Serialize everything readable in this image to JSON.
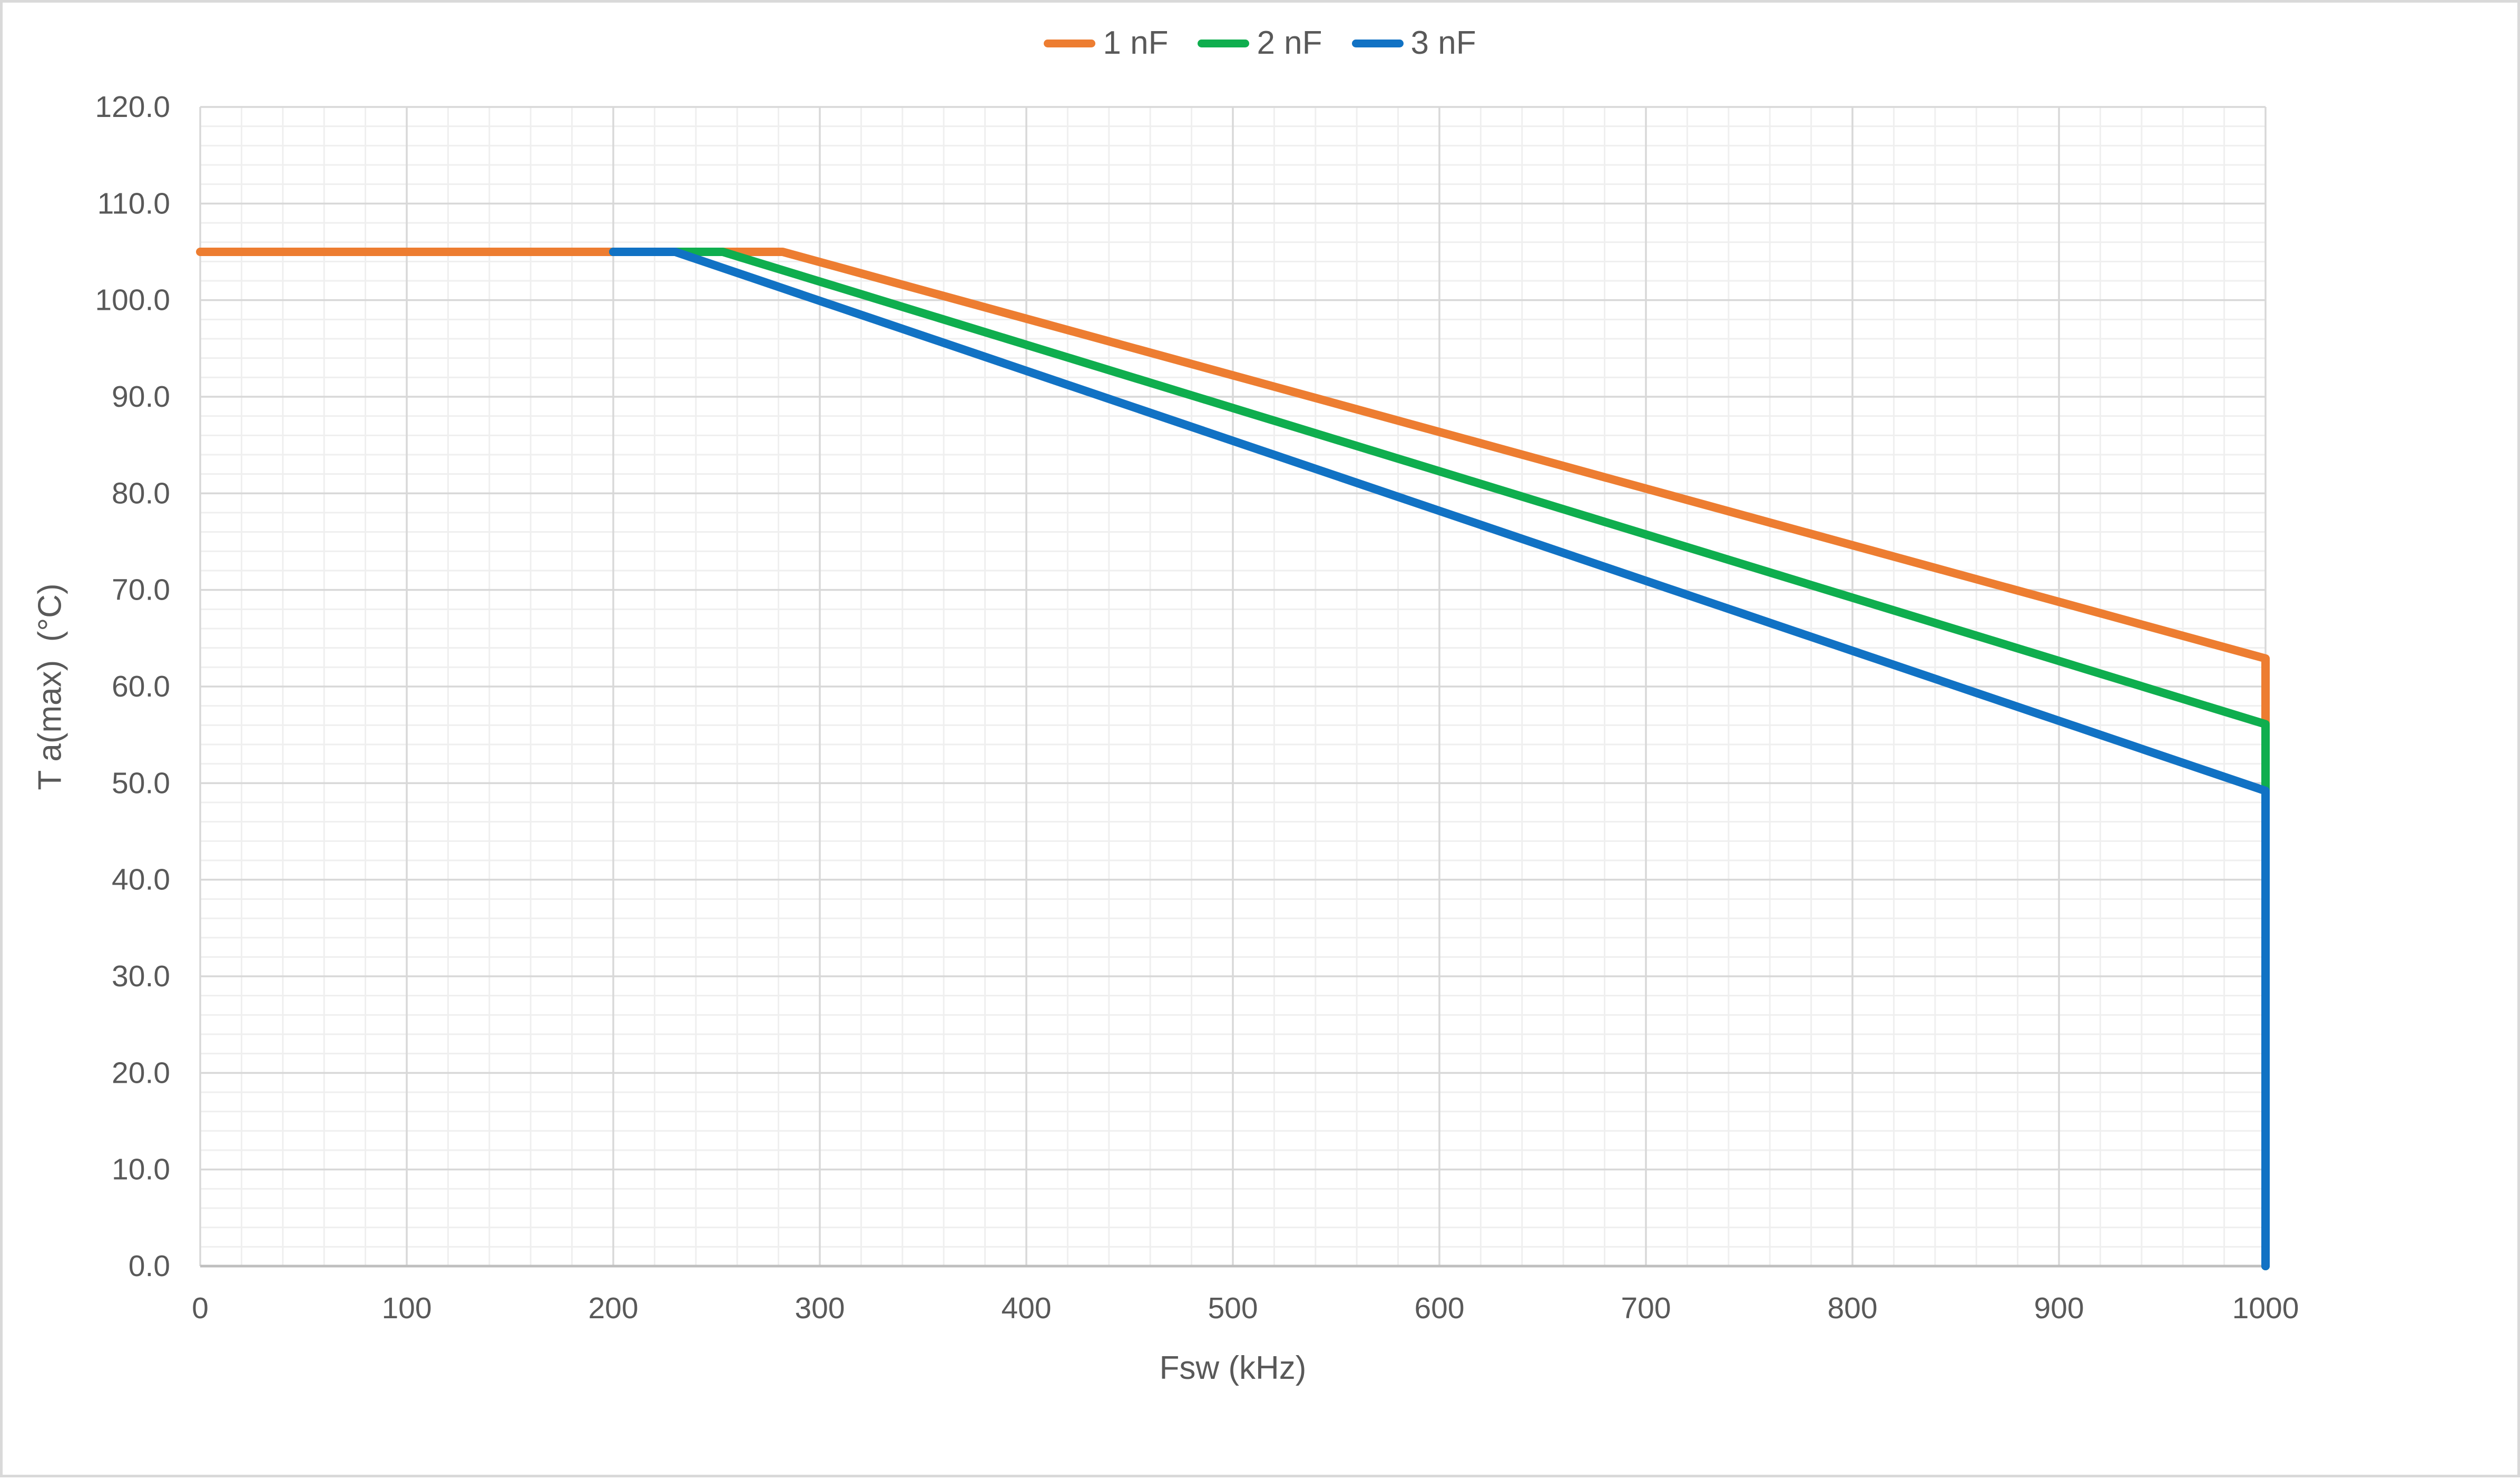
{
  "chart": {
    "background": "#ffffff",
    "border_color": "#d9d9d9",
    "text_color": "#595959",
    "grid": {
      "major_color": "#d8d8d8",
      "minor_color": "#efefef",
      "axis_line_color": "#bfbfbf"
    },
    "x_axis": {
      "title": "Fsw (kHz)",
      "min": 0,
      "max": 1000,
      "major_unit": 100,
      "minor_unit": 20,
      "tick_labels": [
        "0",
        "100",
        "200",
        "300",
        "400",
        "500",
        "600",
        "700",
        "800",
        "900",
        "1000"
      ]
    },
    "y_axis": {
      "title": "T a(max)  (°C)",
      "min": 0,
      "max": 120,
      "major_unit": 10,
      "minor_unit": 2,
      "tick_labels": [
        "0.0",
        "10.0",
        "20.0",
        "30.0",
        "40.0",
        "50.0",
        "60.0",
        "70.0",
        "80.0",
        "90.0",
        "100.0",
        "110.0",
        "120.0"
      ]
    },
    "legend_position": "top-center"
  },
  "chart_data": {
    "type": "line",
    "title": "",
    "xlabel": "Fsw (kHz)",
    "ylabel": "T a(max)  (°C)",
    "xlim": [
      0,
      1000
    ],
    "ylim": [
      0,
      120
    ],
    "grid": "major+minor",
    "legend_position": "top-center",
    "series": [
      {
        "name": "1 nF",
        "color": "#ed7d31",
        "points": [
          [
            0,
            105
          ],
          [
            282,
            105
          ],
          [
            1000,
            62.9
          ],
          [
            1000,
            0
          ]
        ]
      },
      {
        "name": "2 nF",
        "color": "#0fae4e",
        "points": [
          [
            200,
            105
          ],
          [
            253,
            105
          ],
          [
            1000,
            56.1
          ],
          [
            1000,
            0
          ]
        ]
      },
      {
        "name": "3 nF",
        "color": "#1172c4",
        "points": [
          [
            200,
            105
          ],
          [
            230,
            105
          ],
          [
            1000,
            49.2
          ],
          [
            1000,
            0
          ]
        ]
      }
    ]
  }
}
